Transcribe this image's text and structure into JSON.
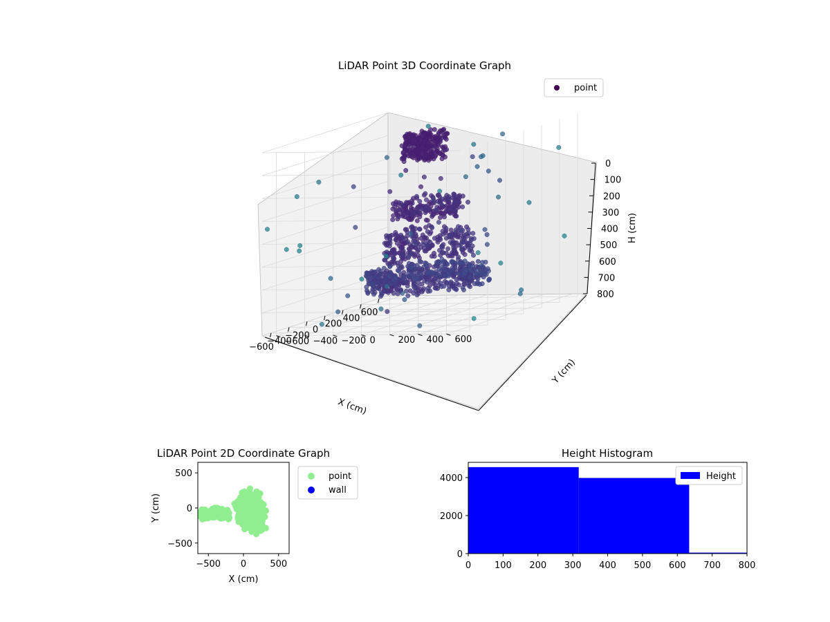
{
  "chart_data": [
    {
      "type": "scatter3d",
      "title": "LiDAR Point 3D Coordinate Graph",
      "xlabel": "X (cm)",
      "ylabel": "Y (cm)",
      "zlabel": "H (cm)",
      "xlim": [
        -700,
        700
      ],
      "ylim": [
        -700,
        700
      ],
      "zlim": [
        0,
        800
      ],
      "x_ticks": [
        "−600",
        "−400",
        "−200",
        "0",
        "200",
        "400",
        "600"
      ],
      "y_ticks": [
        "−600",
        "−400",
        "−200",
        "0",
        "200",
        "400",
        "600"
      ],
      "z_ticks": [
        "0",
        "100",
        "200",
        "300",
        "400",
        "500",
        "600",
        "700",
        "800"
      ],
      "z_inverted": true,
      "legend": [
        {
          "label": "point",
          "color": "#440154"
        }
      ],
      "legend_position": "upper-right",
      "colormap": "viridis",
      "series": [
        {
          "name": "point",
          "clusters": [
            {
              "shape": "ring",
              "center": [
                30,
                0
              ],
              "radius": 380,
              "h": [
                600,
                680
              ],
              "n": 520
            },
            {
              "shape": "ring",
              "center": [
                50,
                0
              ],
              "radius": 280,
              "h": [
                430,
                560
              ],
              "n": 260
            },
            {
              "shape": "ring",
              "center": [
                80,
                -20
              ],
              "radius": 220,
              "h": [
                300,
                380
              ],
              "n": 200
            },
            {
              "shape": "blob",
              "center": [
                0,
                0
              ],
              "radius": 140,
              "h": [
                0,
                120
              ],
              "n": 260
            },
            {
              "shape": "sparse",
              "center": [
                0,
                0
              ],
              "radius": 700,
              "h": [
                0,
                800
              ],
              "n": 70
            }
          ]
        }
      ],
      "grid": true
    },
    {
      "type": "scatter",
      "title": "LiDAR Point 2D Coordinate Graph",
      "xlabel": "X (cm)",
      "ylabel": "Y (cm)",
      "xlim": [
        -650,
        650
      ],
      "ylim": [
        -650,
        650
      ],
      "x_ticks": [
        "−500",
        "0",
        "500"
      ],
      "y_ticks": [
        "−500",
        "0",
        "500"
      ],
      "legend": [
        {
          "label": "point",
          "color": "#90ee90"
        },
        {
          "label": "wall",
          "color": "#0000ff"
        }
      ],
      "legend_position": "outside-right",
      "series": [
        {
          "name": "point",
          "color": "#90ee90",
          "center": [
            100,
            -50
          ],
          "spread": [
            170,
            260
          ],
          "n": 650
        },
        {
          "name": "wall",
          "color": "#0000ff",
          "n": 0
        }
      ]
    },
    {
      "type": "histogram",
      "title": "Height Histogram",
      "xlim": [
        0,
        800
      ],
      "ylim": [
        0,
        4800
      ],
      "x_ticks": [
        "0",
        "100",
        "200",
        "300",
        "400",
        "500",
        "600",
        "700",
        "800"
      ],
      "y_ticks": [
        "0",
        "2000",
        "4000"
      ],
      "legend": [
        {
          "label": "Height",
          "color": "#0000ff"
        }
      ],
      "legend_position": "upper-right",
      "bins": [
        {
          "x0": 0,
          "x1": 317,
          "value": 4550
        },
        {
          "x0": 317,
          "x1": 634,
          "value": 3980
        },
        {
          "x0": 634,
          "x1": 800,
          "value": 50
        }
      ],
      "color": "#0000ff"
    }
  ]
}
